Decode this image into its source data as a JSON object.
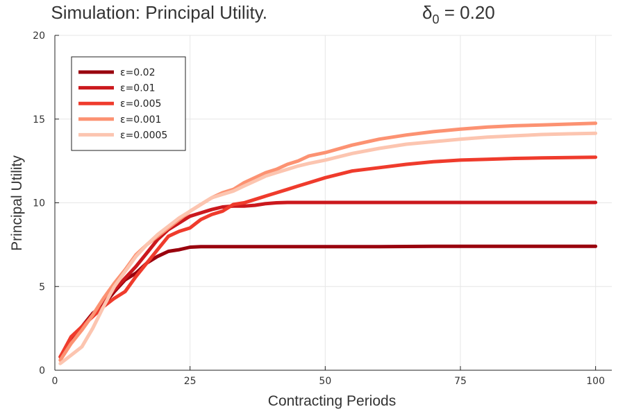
{
  "chart_data": {
    "type": "line",
    "title": "Simulation: Principal Utility.",
    "title_delta": {
      "symbol": "δ",
      "subscript": "0",
      "text": " = 0.20"
    },
    "xlabel": "Contracting Periods",
    "ylabel": "Principal Utility",
    "xlim": [
      0,
      103
    ],
    "ylim": [
      0,
      20
    ],
    "xticks": [
      0,
      25,
      50,
      75,
      100
    ],
    "yticks": [
      0,
      5,
      10,
      15,
      20
    ],
    "grid": true,
    "legend_position": "top-left",
    "series": [
      {
        "name": "ε=0.02",
        "color": "#99000d",
        "x": [
          1,
          3,
          5,
          7,
          9,
          11,
          13,
          15,
          17,
          19,
          21,
          23,
          25,
          27,
          30,
          40,
          50,
          60,
          70,
          80,
          90,
          100
        ],
        "y": [
          0.8,
          1.9,
          2.6,
          3.4,
          3.9,
          4.7,
          5.4,
          5.8,
          6.4,
          6.8,
          7.1,
          7.2,
          7.35,
          7.38,
          7.38,
          7.38,
          7.38,
          7.38,
          7.4,
          7.4,
          7.4,
          7.4
        ]
      },
      {
        "name": "ε=0.01",
        "color": "#cb181d",
        "x": [
          1,
          3,
          5,
          7,
          9,
          11,
          13,
          15,
          17,
          19,
          21,
          23,
          25,
          27,
          29,
          31,
          33,
          35,
          37,
          39,
          41,
          43,
          50,
          60,
          70,
          80,
          90,
          100
        ],
        "y": [
          0.8,
          1.8,
          2.6,
          3.3,
          4.2,
          4.8,
          5.5,
          6.2,
          7.0,
          7.8,
          8.4,
          8.8,
          9.2,
          9.4,
          9.6,
          9.75,
          9.8,
          9.8,
          9.85,
          9.95,
          10.0,
          10.02,
          10.02,
          10.02,
          10.02,
          10.02,
          10.02,
          10.02
        ]
      },
      {
        "name": "ε=0.005",
        "color": "#ef3b2c",
        "x": [
          1,
          3,
          5,
          7,
          9,
          11,
          13,
          15,
          17,
          19,
          21,
          23,
          25,
          27,
          29,
          31,
          33,
          35,
          37,
          39,
          41,
          43,
          45,
          47,
          50,
          55,
          60,
          65,
          70,
          75,
          80,
          85,
          90,
          95,
          100
        ],
        "y": [
          0.8,
          2.0,
          2.6,
          3.2,
          3.8,
          4.3,
          4.7,
          5.6,
          6.4,
          7.2,
          8.0,
          8.3,
          8.5,
          9.0,
          9.3,
          9.5,
          9.9,
          10.0,
          10.2,
          10.4,
          10.6,
          10.8,
          11.0,
          11.2,
          11.5,
          11.9,
          12.1,
          12.3,
          12.45,
          12.55,
          12.6,
          12.65,
          12.68,
          12.7,
          12.72
        ]
      },
      {
        "name": "ε=0.001",
        "color": "#fc9272",
        "x": [
          1,
          3,
          5,
          7,
          9,
          11,
          13,
          15,
          17,
          19,
          21,
          23,
          25,
          27,
          29,
          31,
          33,
          35,
          37,
          39,
          41,
          43,
          45,
          47,
          50,
          55,
          60,
          65,
          70,
          75,
          80,
          85,
          90,
          95,
          100
        ],
        "y": [
          0.6,
          1.6,
          2.4,
          3.3,
          4.3,
          5.2,
          6.0,
          6.9,
          7.5,
          8.0,
          8.5,
          9.0,
          9.5,
          9.9,
          10.3,
          10.6,
          10.8,
          11.2,
          11.5,
          11.8,
          12.0,
          12.3,
          12.5,
          12.8,
          13.0,
          13.45,
          13.8,
          14.05,
          14.25,
          14.4,
          14.52,
          14.6,
          14.65,
          14.7,
          14.75
        ]
      },
      {
        "name": "ε=0.0005",
        "color": "#fcc5b0",
        "x": [
          1,
          3,
          5,
          7,
          9,
          11,
          13,
          15,
          17,
          19,
          21,
          23,
          25,
          27,
          29,
          31,
          33,
          35,
          37,
          39,
          41,
          43,
          45,
          47,
          50,
          55,
          60,
          65,
          70,
          75,
          80,
          85,
          90,
          95,
          100
        ],
        "y": [
          0.4,
          0.9,
          1.4,
          2.5,
          3.8,
          5.0,
          5.9,
          6.8,
          7.5,
          8.1,
          8.6,
          9.1,
          9.5,
          9.9,
          10.3,
          10.5,
          10.7,
          11.0,
          11.3,
          11.6,
          11.8,
          12.0,
          12.2,
          12.35,
          12.55,
          12.95,
          13.25,
          13.5,
          13.65,
          13.8,
          13.92,
          14.0,
          14.08,
          14.12,
          14.15
        ]
      }
    ]
  }
}
